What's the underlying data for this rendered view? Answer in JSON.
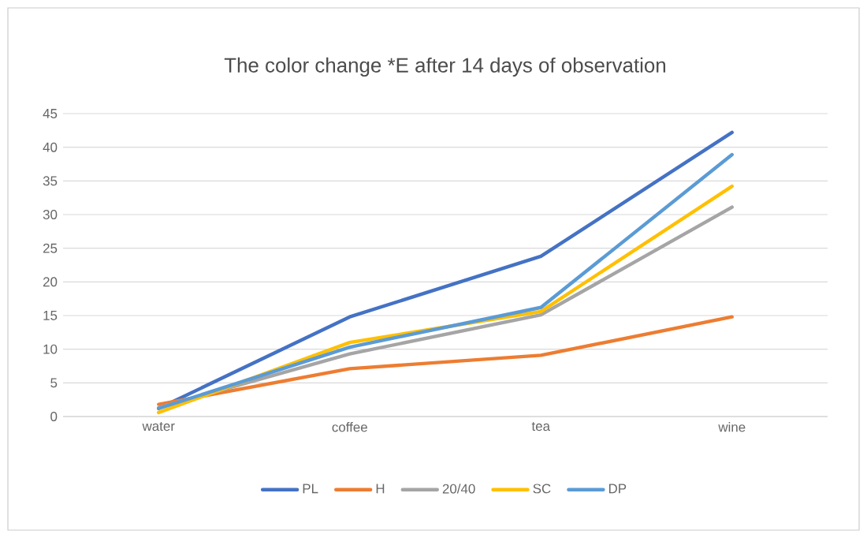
{
  "chart_data": {
    "type": "line",
    "title": "The color change *E after 14 days of observation",
    "categories": [
      "water",
      "coffee",
      "tea",
      "wine"
    ],
    "series": [
      {
        "name": "PL",
        "color": "#4472c4",
        "values": [
          1.2,
          14.8,
          23.8,
          42.2
        ]
      },
      {
        "name": "H",
        "color": "#ed7d31",
        "values": [
          1.8,
          7.1,
          9.1,
          14.8
        ]
      },
      {
        "name": "20/40",
        "color": "#a5a5a5",
        "values": [
          1.3,
          9.3,
          15.1,
          31.1
        ]
      },
      {
        "name": "SC",
        "color": "#ffc000",
        "values": [
          0.6,
          11.0,
          15.6,
          34.2
        ]
      },
      {
        "name": "DP",
        "color": "#5b9bd5",
        "values": [
          1.2,
          10.3,
          16.2,
          38.9
        ]
      }
    ],
    "ylim": [
      0,
      45
    ],
    "yticks": [
      0,
      5,
      10,
      15,
      20,
      25,
      30,
      35,
      40,
      45
    ],
    "grid": "y",
    "legend": "bottom",
    "marker": "none",
    "line_style": "solid"
  }
}
